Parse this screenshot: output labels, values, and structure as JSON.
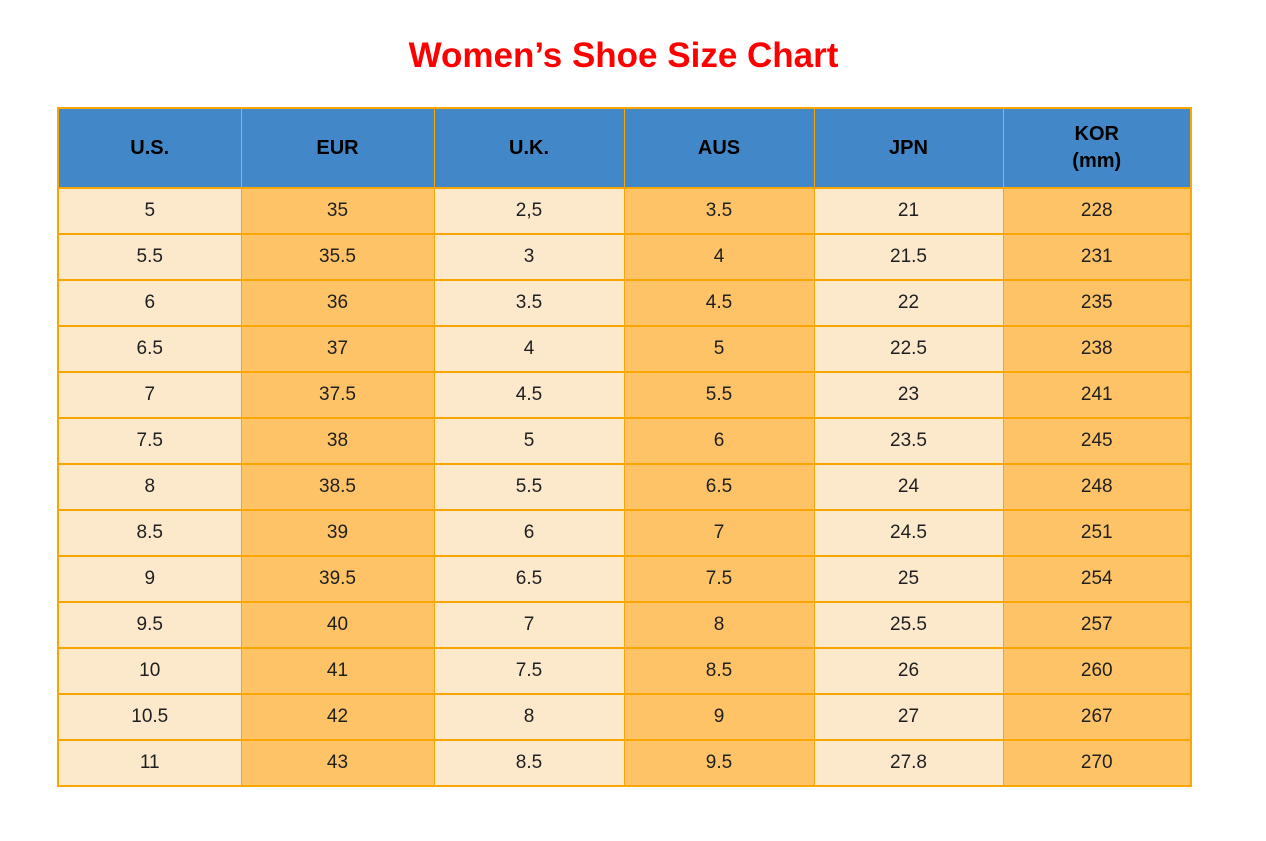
{
  "title": {
    "text": "Women’s Shoe Size Chart"
  },
  "colors": {
    "title": "#FF0000",
    "header_bg": "#4288C8",
    "light_cell": "#FCE9CC",
    "dark_cell": "#FFC367",
    "grid_border": "#F9A602",
    "header_text": "#000000",
    "cell_text": "#1F1F1F"
  },
  "table": {
    "header": [
      {
        "label": "U.S.",
        "line2": ""
      },
      {
        "label": "EUR",
        "line2": ""
      },
      {
        "label": "U.K.",
        "line2": ""
      },
      {
        "label": "AUS",
        "line2": ""
      },
      {
        "label": "JPN",
        "line2": ""
      },
      {
        "label": "KOR",
        "line2": "(mm)"
      }
    ],
    "column_shades": [
      "light",
      "dark",
      "light",
      "dark",
      "light",
      "dark"
    ]
  },
  "chart_data": {
    "type": "table",
    "title": "Women’s Shoe Size Chart",
    "columns": [
      "U.S.",
      "EUR",
      "U.K.",
      "AUS",
      "JPN",
      "KOR (mm)"
    ],
    "rows": [
      [
        "5",
        "35",
        "2,5",
        "3.5",
        "21",
        "228"
      ],
      [
        "5.5",
        "35.5",
        "3",
        "4",
        "21.5",
        "231"
      ],
      [
        "6",
        "36",
        "3.5",
        "4.5",
        "22",
        "235"
      ],
      [
        "6.5",
        "37",
        "4",
        "5",
        "22.5",
        "238"
      ],
      [
        "7",
        "37.5",
        "4.5",
        "5.5",
        "23",
        "241"
      ],
      [
        "7.5",
        "38",
        "5",
        "6",
        "23.5",
        "245"
      ],
      [
        "8",
        "38.5",
        "5.5",
        "6.5",
        "24",
        "248"
      ],
      [
        "8.5",
        "39",
        "6",
        "7",
        "24.5",
        "251"
      ],
      [
        "9",
        "39.5",
        "6.5",
        "7.5",
        "25",
        "254"
      ],
      [
        "9.5",
        "40",
        "7",
        "8",
        "25.5",
        "257"
      ],
      [
        "10",
        "41",
        "7.5",
        "8.5",
        "26",
        "260"
      ],
      [
        "10.5",
        "42",
        "8",
        "9",
        "27",
        "267"
      ],
      [
        "11",
        "43",
        "8.5",
        "9.5",
        "27.8",
        "270"
      ]
    ]
  }
}
